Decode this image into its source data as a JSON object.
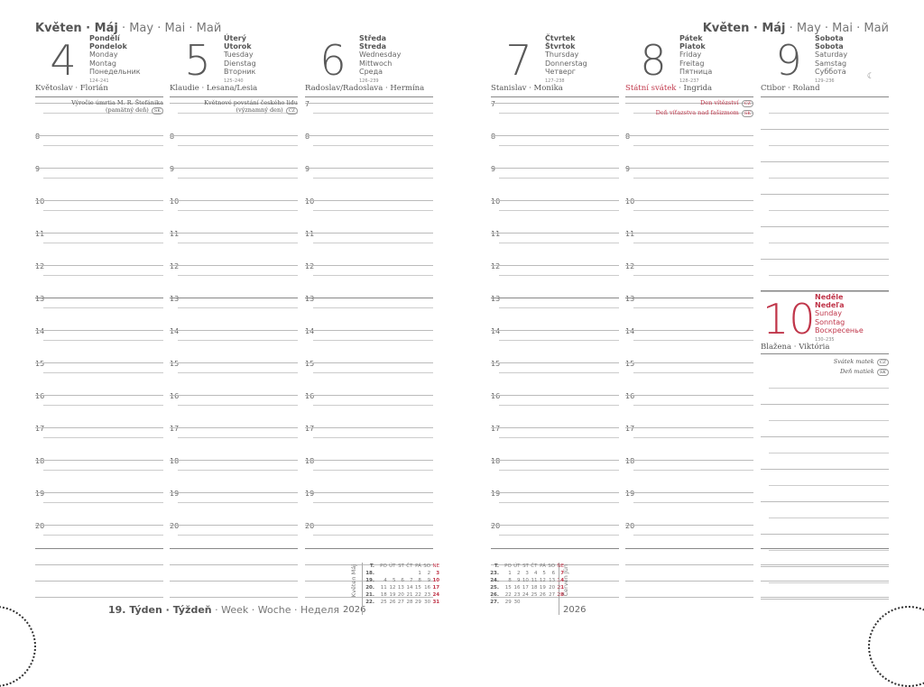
{
  "month_header": {
    "bold": "Květen · Máj",
    "rest": " · May · Mai · Май"
  },
  "days": [
    {
      "num": "4",
      "name_cz": "Pondělí",
      "name_sk": "Pondelok",
      "en": "Monday",
      "de": "Montag",
      "ru": "Понедельник",
      "count": "124–241",
      "nameday": "Květoslav · Florián",
      "note": "Výročie úmrtia M. R. Štefánika (pamätný deň)",
      "note_badge": "SK"
    },
    {
      "num": "5",
      "name_cz": "Úterý",
      "name_sk": "Utorok",
      "en": "Tuesday",
      "de": "Dienstag",
      "ru": "Вторник",
      "count": "125–240",
      "nameday": "Klaudie · Lesana/Lesia",
      "note": "Květnové povstání českého lidu (významný den)",
      "note_badge": "CZ"
    },
    {
      "num": "6",
      "name_cz": "Středa",
      "name_sk": "Streda",
      "en": "Wednesday",
      "de": "Mittwoch",
      "ru": "Среда",
      "count": "126–239",
      "nameday": "Radoslav/Radoslava · Hermína"
    },
    {
      "num": "7",
      "name_cz": "Čtvrtek",
      "name_sk": "Štvrtok",
      "en": "Thursday",
      "de": "Donnerstag",
      "ru": "Четверг",
      "count": "127–238",
      "nameday": "Stanislav · Monika"
    },
    {
      "num": "8",
      "name_cz": "Pátek",
      "name_sk": "Piatok",
      "en": "Friday",
      "de": "Freitag",
      "ru": "Пятница",
      "count": "128–237",
      "nameday_red": "Státní svátek",
      "nameday": " · Ingrida",
      "note": "Den vítězství",
      "note_badge": "CZ",
      "note2": "Deň víťazstva nad fašizmom",
      "note2_badge": "SK"
    },
    {
      "num": "9",
      "name_cz": "Sobota",
      "name_sk": "Sobota",
      "en": "Saturday",
      "de": "Samstag",
      "ru": "Суббота",
      "count": "129–236",
      "nameday": "Ctibor · Roland",
      "moon": "☾"
    },
    {
      "num": "10",
      "name_cz": "Neděle",
      "name_sk": "Nedeľa",
      "en": "Sunday",
      "de": "Sonntag",
      "ru": "Воскресенье",
      "count": "130–235",
      "nameday": "Blažena · Viktória",
      "note": "Svátek matek",
      "note_badge": "CZ",
      "note2": "Deň matiek",
      "note2_badge": "SK"
    }
  ],
  "hours": [
    "7",
    "8",
    "9",
    "10",
    "11",
    "12",
    "13",
    "14",
    "15",
    "16",
    "17",
    "18",
    "19",
    "20"
  ],
  "week_label": {
    "bold": "19. Týden · Týždeň",
    "rest": " · Week · Woche · Неделя"
  },
  "year": "2026",
  "cal_may": {
    "label": "Květen Máj",
    "header": [
      "T.",
      "PO",
      "ÚT",
      "ST",
      "ČT",
      "PÁ",
      "SO",
      "NE"
    ],
    "rows": [
      [
        "18.",
        "",
        "",
        "",
        "",
        "1",
        "2",
        "3"
      ],
      [
        "19.",
        "4",
        "5",
        "6",
        "7",
        "8",
        "9",
        "10"
      ],
      [
        "20.",
        "11",
        "12",
        "13",
        "14",
        "15",
        "16",
        "17"
      ],
      [
        "21.",
        "18",
        "19",
        "20",
        "21",
        "22",
        "23",
        "24"
      ],
      [
        "22.",
        "25",
        "26",
        "27",
        "28",
        "29",
        "30",
        "31"
      ]
    ]
  },
  "cal_june": {
    "label": "Červen Jún",
    "header": [
      "T.",
      "PO",
      "ÚT",
      "ST",
      "ČT",
      "PÁ",
      "SO",
      "NE"
    ],
    "rows": [
      [
        "23.",
        "1",
        "2",
        "3",
        "4",
        "5",
        "6",
        "7"
      ],
      [
        "24.",
        "8",
        "9",
        "10",
        "11",
        "12",
        "13",
        "14"
      ],
      [
        "25.",
        "15",
        "16",
        "17",
        "18",
        "19",
        "20",
        "21"
      ],
      [
        "26.",
        "22",
        "23",
        "24",
        "25",
        "26",
        "27",
        "28"
      ],
      [
        "27.",
        "29",
        "30",
        "",
        "",
        "",
        "",
        ""
      ]
    ]
  },
  "colors": {
    "accent_red": "#c0364a",
    "text": "#555555"
  }
}
